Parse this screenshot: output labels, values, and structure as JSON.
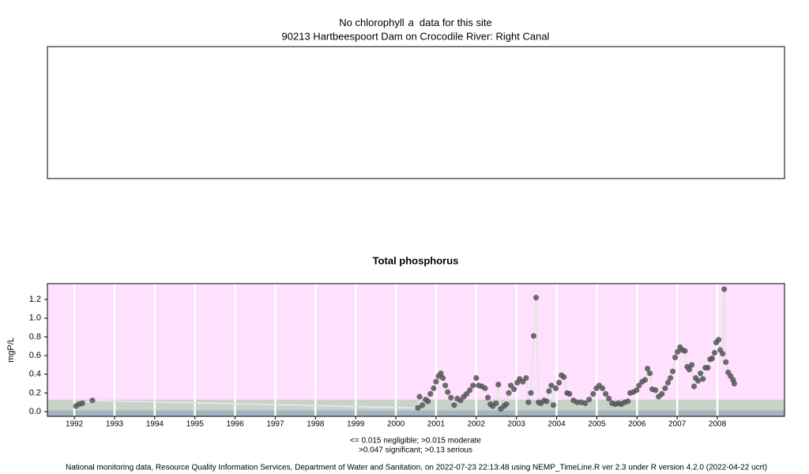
{
  "header": {
    "message_start": "No chlorophyll",
    "message_italic": "a",
    "message_end": "data for this site",
    "site": "90213 Hartbeespoort Dam on Crocodile River: Right Canal"
  },
  "chart_data": {
    "type": "scatter",
    "title": "Total phosphorus",
    "y_label": "mgP/L",
    "xlim": [
      1991.33,
      2009.67
    ],
    "xticks": [
      1992,
      1993,
      1994,
      1995,
      1996,
      1997,
      1998,
      1999,
      2000,
      2001,
      2002,
      2003,
      2004,
      2005,
      2006,
      2007,
      2008
    ],
    "ylim": [
      -0.05,
      1.37
    ],
    "yticks": [
      {
        "value": 0,
        "label": "0.0"
      },
      0.2,
      0.4,
      0.6,
      0.8,
      {
        "value": 1,
        "label": "1.0"
      },
      1.2
    ],
    "thresholds": [
      0.015,
      0.047,
      0.13
    ],
    "band_colors": [
      "#a6b4c2",
      "#c8d2c8",
      "#c8d2c8",
      "#ffe0ff"
    ],
    "threshold_notes": [
      "<= 0.015 negligible; >0.015 moderate",
      ">0.047 significant; >0.13 serious"
    ],
    "series": [
      {
        "color": "#555555",
        "x": [
          1992.04,
          1992.12,
          1992.2,
          1992.45,
          2000.55,
          2000.59,
          2000.66,
          2000.74,
          2000.8,
          2000.86,
          2000.94,
          2001.0,
          2001.06,
          2001.12,
          2001.17,
          2001.23,
          2001.29,
          2001.37,
          2001.45,
          2001.53,
          2001.61,
          2001.69,
          2001.76,
          2001.84,
          2001.92,
          2002.0,
          2002.06,
          2002.14,
          2002.22,
          2002.29,
          2002.35,
          2002.41,
          2002.49,
          2002.55,
          2002.61,
          2002.69,
          2002.75,
          2002.81,
          2002.86,
          2002.94,
          2003.02,
          2003.08,
          2003.16,
          2003.24,
          2003.3,
          2003.36,
          2003.43,
          2003.49,
          2003.55,
          2003.61,
          2003.69,
          2003.75,
          2003.81,
          2003.87,
          2003.92,
          2003.98,
          2004.06,
          2004.12,
          2004.18,
          2004.26,
          2004.32,
          2004.42,
          2004.51,
          2004.61,
          2004.71,
          2004.81,
          2004.91,
          2004.99,
          2005.06,
          2005.14,
          2005.22,
          2005.3,
          2005.38,
          2005.46,
          2005.54,
          2005.61,
          2005.69,
          2005.77,
          2005.83,
          2005.91,
          2005.99,
          2006.05,
          2006.13,
          2006.2,
          2006.26,
          2006.32,
          2006.38,
          2006.46,
          2006.54,
          2006.62,
          2006.7,
          2006.77,
          2006.83,
          2006.89,
          2006.95,
          2007.01,
          2007.07,
          2007.13,
          2007.19,
          2007.25,
          2007.3,
          2007.36,
          2007.42,
          2007.46,
          2007.52,
          2007.58,
          2007.64,
          2007.7,
          2007.76,
          2007.82,
          2007.87,
          2007.93,
          2007.97,
          2008.03,
          2008.07,
          2008.13,
          2008.17,
          2008.21,
          2008.27,
          2008.33,
          2008.39,
          2008.42
        ],
        "values": [
          0.06,
          0.08,
          0.09,
          0.12,
          0.04,
          0.16,
          0.07,
          0.13,
          0.11,
          0.19,
          0.25,
          0.32,
          0.38,
          0.41,
          0.36,
          0.28,
          0.21,
          0.15,
          0.07,
          0.14,
          0.12,
          0.16,
          0.19,
          0.23,
          0.28,
          0.36,
          0.28,
          0.27,
          0.25,
          0.15,
          0.08,
          0.06,
          0.09,
          0.29,
          0.03,
          0.06,
          0.08,
          0.2,
          0.28,
          0.24,
          0.31,
          0.35,
          0.32,
          0.36,
          0.1,
          0.2,
          0.81,
          1.22,
          0.1,
          0.09,
          0.12,
          0.11,
          0.22,
          0.28,
          0.07,
          0.25,
          0.31,
          0.39,
          0.37,
          0.2,
          0.19,
          0.12,
          0.1,
          0.1,
          0.09,
          0.13,
          0.19,
          0.25,
          0.28,
          0.25,
          0.19,
          0.14,
          0.09,
          0.08,
          0.09,
          0.08,
          0.1,
          0.11,
          0.2,
          0.21,
          0.23,
          0.28,
          0.32,
          0.34,
          0.46,
          0.41,
          0.24,
          0.23,
          0.16,
          0.19,
          0.25,
          0.31,
          0.36,
          0.43,
          0.58,
          0.64,
          0.69,
          0.66,
          0.65,
          0.48,
          0.45,
          0.5,
          0.27,
          0.36,
          0.33,
          0.41,
          0.35,
          0.47,
          0.47,
          0.56,
          0.57,
          0.63,
          0.74,
          0.77,
          0.66,
          0.62,
          1.31,
          0.53,
          0.42,
          0.38,
          0.34,
          0.3
        ]
      }
    ]
  },
  "footer": "National monitoring data, Resource Quality Information Services, Department of Water and Sanitation, on 2022-07-23 22:13:48 using NEMP_TimeLine.R ver 2.3 under R version 4.2.0 (2022-04-22 ucrt)"
}
